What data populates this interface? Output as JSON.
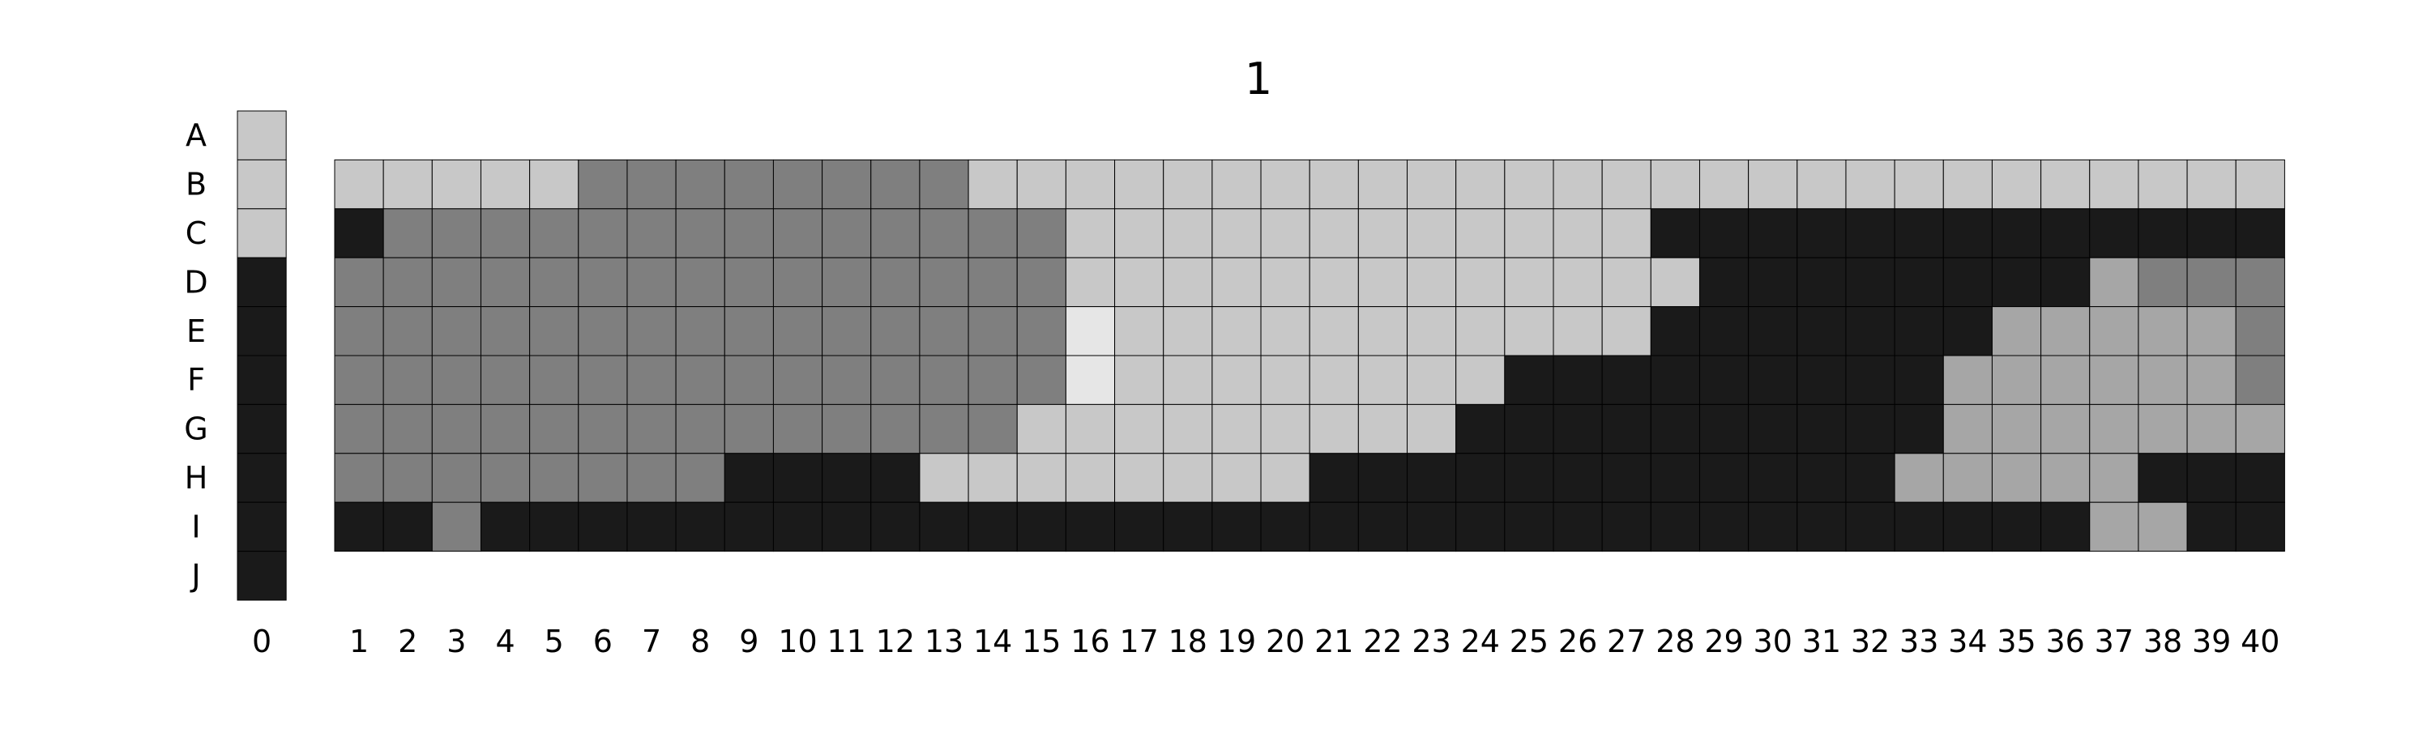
{
  "chart_data": {
    "type": "heatmap",
    "title": "1",
    "palette": {
      "0": "#1a1a1a",
      "1": "#7f7f7f",
      "2": "#a6a6a6",
      "3": "#c8c8c8",
      "4": "#e6e6e6"
    },
    "cell_border_color": "#000000",
    "column0": {
      "label": "0",
      "rows": [
        "A",
        "B",
        "C",
        "D",
        "E",
        "F",
        "G",
        "H",
        "I",
        "J"
      ],
      "values": [
        3,
        3,
        3,
        0,
        0,
        0,
        0,
        0,
        0,
        0
      ]
    },
    "main": {
      "rows": [
        "B",
        "C",
        "D",
        "E",
        "F",
        "G",
        "H",
        "I"
      ],
      "columns": [
        "1",
        "2",
        "3",
        "4",
        "5",
        "6",
        "7",
        "8",
        "9",
        "10",
        "11",
        "12",
        "13",
        "14",
        "15",
        "16",
        "17",
        "18",
        "19",
        "20",
        "21",
        "22",
        "23",
        "24",
        "25",
        "26",
        "27",
        "28",
        "29",
        "30",
        "31",
        "32",
        "33",
        "34",
        "35",
        "36",
        "37",
        "38",
        "39",
        "40"
      ],
      "values": [
        [
          3,
          3,
          3,
          3,
          3,
          1,
          1,
          1,
          1,
          1,
          1,
          1,
          1,
          3,
          3,
          3,
          3,
          3,
          3,
          3,
          3,
          3,
          3,
          3,
          3,
          3,
          3,
          3,
          3,
          3,
          3,
          3,
          3,
          3,
          3,
          3,
          3,
          3,
          3,
          3
        ],
        [
          0,
          1,
          1,
          1,
          1,
          1,
          1,
          1,
          1,
          1,
          1,
          1,
          1,
          1,
          1,
          3,
          3,
          3,
          3,
          3,
          3,
          3,
          3,
          3,
          3,
          3,
          3,
          0,
          0,
          0,
          0,
          0,
          0,
          0,
          0,
          0,
          0,
          0,
          0,
          0
        ],
        [
          1,
          1,
          1,
          1,
          1,
          1,
          1,
          1,
          1,
          1,
          1,
          1,
          1,
          1,
          1,
          3,
          3,
          3,
          3,
          3,
          3,
          3,
          3,
          3,
          3,
          3,
          3,
          3,
          0,
          0,
          0,
          0,
          0,
          0,
          0,
          0,
          2,
          1,
          1,
          1
        ],
        [
          1,
          1,
          1,
          1,
          1,
          1,
          1,
          1,
          1,
          1,
          1,
          1,
          1,
          1,
          1,
          4,
          3,
          3,
          3,
          3,
          3,
          3,
          3,
          3,
          3,
          3,
          3,
          0,
          0,
          0,
          0,
          0,
          0,
          0,
          2,
          2,
          2,
          2,
          2,
          1
        ],
        [
          1,
          1,
          1,
          1,
          1,
          1,
          1,
          1,
          1,
          1,
          1,
          1,
          1,
          1,
          1,
          4,
          3,
          3,
          3,
          3,
          3,
          3,
          3,
          3,
          0,
          0,
          0,
          0,
          0,
          0,
          0,
          0,
          0,
          2,
          2,
          2,
          2,
          2,
          2,
          1
        ],
        [
          1,
          1,
          1,
          1,
          1,
          1,
          1,
          1,
          1,
          1,
          1,
          1,
          1,
          1,
          3,
          3,
          3,
          3,
          3,
          3,
          3,
          3,
          3,
          0,
          0,
          0,
          0,
          0,
          0,
          0,
          0,
          0,
          0,
          2,
          2,
          2,
          2,
          2,
          2,
          2
        ],
        [
          1,
          1,
          1,
          1,
          1,
          1,
          1,
          1,
          0,
          0,
          0,
          0,
          3,
          3,
          3,
          3,
          3,
          3,
          3,
          3,
          0,
          0,
          0,
          0,
          0,
          0,
          0,
          0,
          0,
          0,
          0,
          0,
          2,
          2,
          2,
          2,
          2,
          0,
          0,
          0
        ],
        [
          0,
          0,
          1,
          0,
          0,
          0,
          0,
          0,
          0,
          0,
          0,
          0,
          0,
          0,
          0,
          0,
          0,
          0,
          0,
          0,
          0,
          0,
          0,
          0,
          0,
          0,
          0,
          0,
          0,
          0,
          0,
          0,
          0,
          0,
          0,
          0,
          2,
          2,
          0,
          0
        ]
      ]
    }
  }
}
